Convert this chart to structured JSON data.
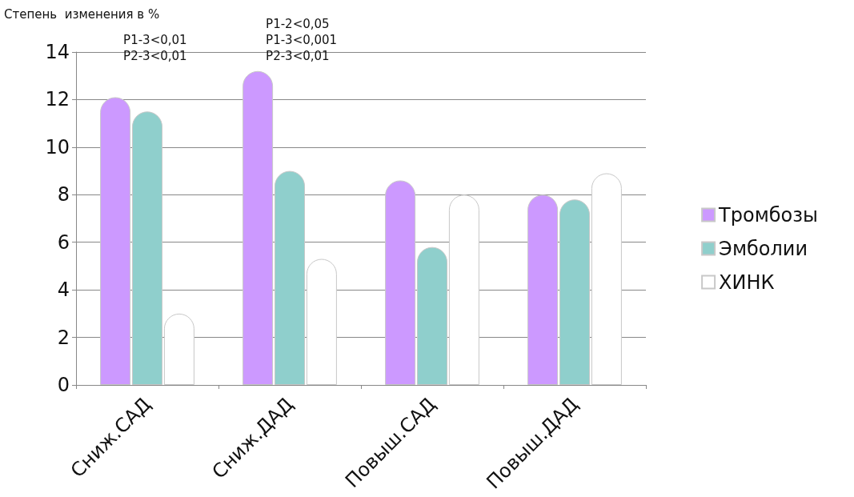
{
  "chart_data": {
    "type": "bar",
    "ylabel": "Степень  изменения в %",
    "categories": [
      "Сниж.САД",
      "Сниж.ДАД",
      "Повыш.САД",
      "Повыш.ДАД"
    ],
    "series": [
      {
        "name": "Тромбозы",
        "color": "#cc99ff",
        "values": [
          12.1,
          13.2,
          8.6,
          8.0
        ]
      },
      {
        "name": "Эмболии",
        "color": "#8fcfcc",
        "values": [
          11.5,
          9.0,
          5.8,
          7.8
        ]
      },
      {
        "name": "ХИНК",
        "color": "#ffffff",
        "values": [
          3.0,
          5.3,
          8.0,
          8.9
        ]
      }
    ],
    "ylim": [
      0,
      14
    ],
    "yticks": [
      0,
      2,
      4,
      6,
      8,
      10,
      12,
      14
    ],
    "grid": "y",
    "legend": "right",
    "annotations": [
      "P1-3<0,01\nP2-3<0,01",
      "P1-2<0,05\nP1-3<0,001\nP2-3<0,01"
    ]
  }
}
